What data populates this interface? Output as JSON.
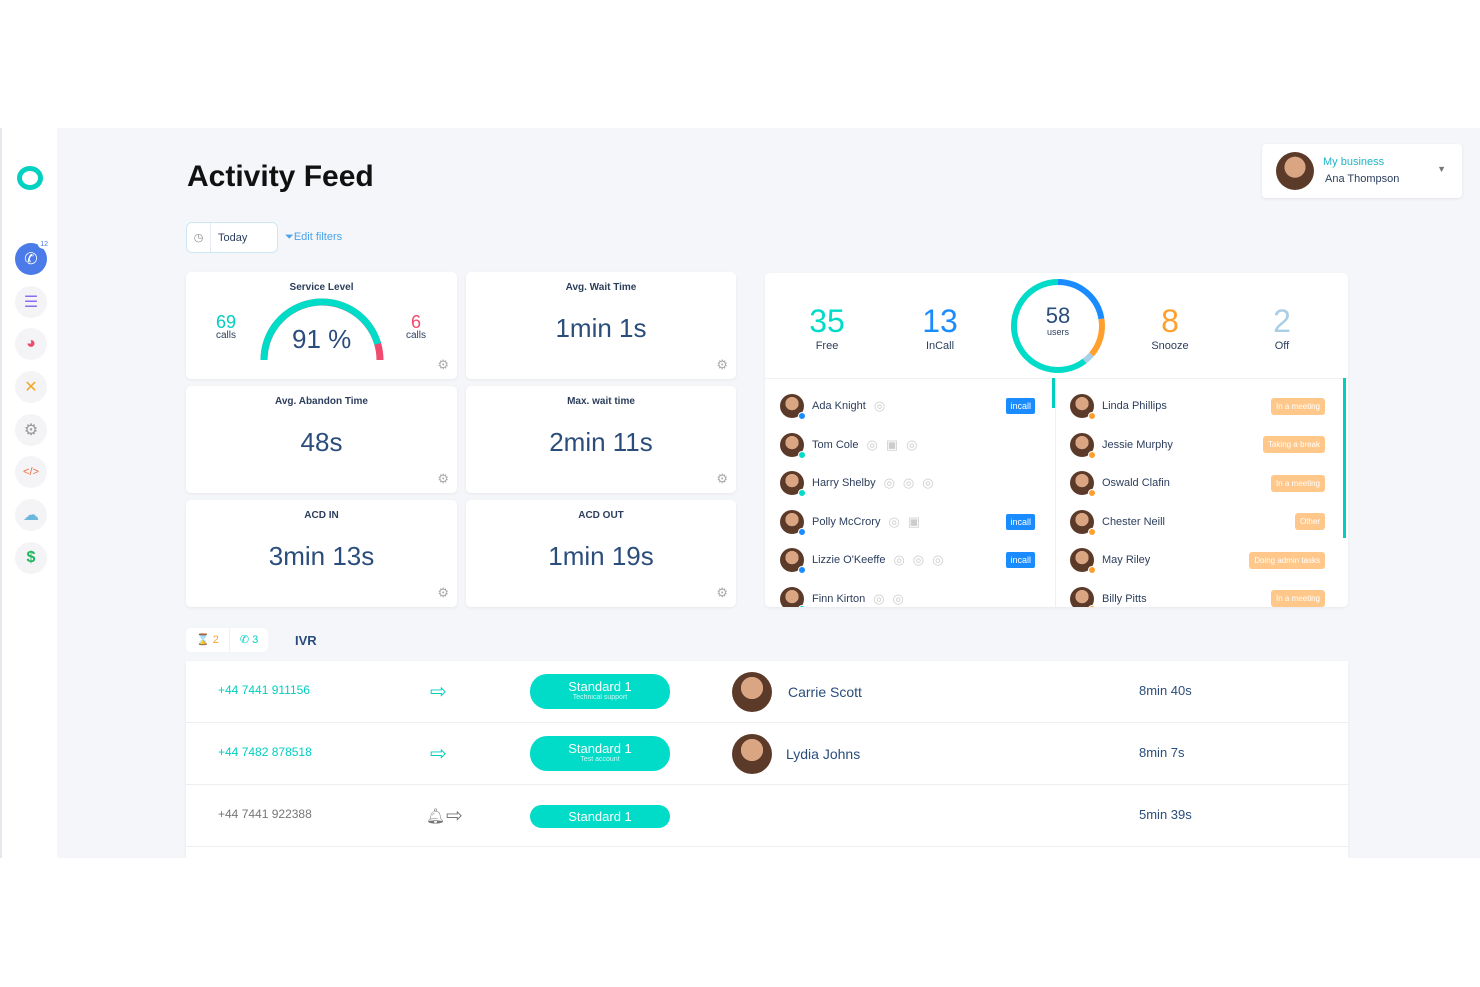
{
  "sidebar": {
    "badge": "12",
    "icons": [
      "logo-icon",
      "phone-icon",
      "list-icon",
      "pie-chart-icon",
      "tools-icon",
      "gear-icon",
      "code-icon",
      "cloud-icon",
      "dollar-icon"
    ]
  },
  "header": {
    "title": "Activity Feed",
    "date_filter": "Today",
    "edit_filters": "Edit filters"
  },
  "profile": {
    "business": "My business",
    "name": "Ana Thompson"
  },
  "metrics": {
    "service_level": {
      "label": "Service Level",
      "value": "91 %",
      "left_count": "69",
      "left_unit": "calls",
      "right_count": "6",
      "right_unit": "calls",
      "fraction": 0.91
    },
    "avg_wait": {
      "label": "Avg. Wait Time",
      "value": "1min 1s"
    },
    "avg_abandon": {
      "label": "Avg. Abandon Time",
      "value": "48s"
    },
    "max_wait": {
      "label": "Max. wait time",
      "value": "2min 11s"
    },
    "acd_in": {
      "label": "ACD IN",
      "value": "3min 13s"
    },
    "acd_out": {
      "label": "ACD OUT",
      "value": "1min 19s"
    }
  },
  "users": {
    "total": "58",
    "total_label": "users",
    "free": {
      "n": "35",
      "label": "Free"
    },
    "incall": {
      "n": "13",
      "label": "InCall"
    },
    "snooze": {
      "n": "8",
      "label": "Snooze"
    },
    "off": {
      "n": "2",
      "label": "Off"
    },
    "colors": {
      "free": "#00dcc8",
      "incall": "#1a8cff",
      "snooze": "#ff9f2e",
      "off": "#a8cfe6"
    },
    "left": [
      {
        "name": "Ada Knight",
        "badge": "incall",
        "devices": [
          "chrome"
        ]
      },
      {
        "name": "Tom Cole",
        "badge": "",
        "devices": [
          "chrome",
          "android",
          "apple"
        ]
      },
      {
        "name": "Harry Shelby",
        "badge": "",
        "devices": [
          "chrome",
          "chrome",
          "apple"
        ]
      },
      {
        "name": "Polly McCrory",
        "badge": "incall",
        "devices": [
          "chrome",
          "android"
        ]
      },
      {
        "name": "Lizzie O'Keeffe",
        "badge": "incall",
        "devices": [
          "chrome",
          "chrome",
          "chrome"
        ]
      },
      {
        "name": "Finn Kirton",
        "badge": "",
        "devices": [
          "chrome",
          "apple"
        ]
      }
    ],
    "right": [
      {
        "name": "Linda Phillips",
        "status": "In a meeting"
      },
      {
        "name": "Jessie Murphy",
        "status": "Taking a break"
      },
      {
        "name": "Oswald Clafin",
        "status": "In a meeting"
      },
      {
        "name": "Chester Neill",
        "status": "Other"
      },
      {
        "name": "May Riley",
        "status": "Doing admin tasks"
      },
      {
        "name": "Billy Pitts",
        "status": "In a meeting"
      }
    ]
  },
  "queue": {
    "waiting": "2",
    "active": "3",
    "ivr_label": "IVR"
  },
  "calls": [
    {
      "phone": "+44 7441 911156",
      "queue": "Standard 1",
      "sub": "Technical support",
      "agent": "Carrie Scott",
      "duration": "8min 40s"
    },
    {
      "phone": "+44 7482 878518",
      "queue": "Standard 1",
      "sub": "Test account",
      "agent": "Lydia Johns",
      "duration": "8min 7s"
    },
    {
      "phone": "+44 7441 922388",
      "queue": "Standard 1",
      "sub": "",
      "agent": "",
      "duration": "5min 39s"
    }
  ]
}
